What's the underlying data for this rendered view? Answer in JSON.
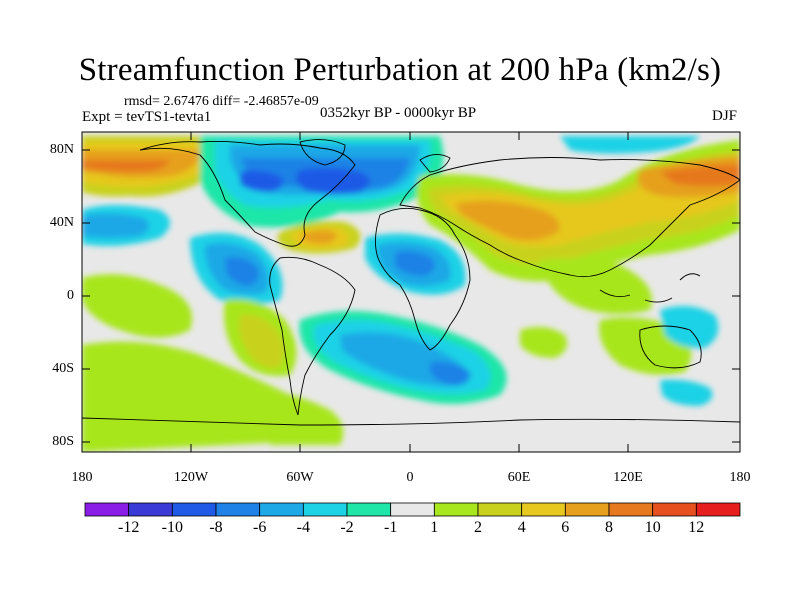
{
  "title": "Streamfunction Perturbation at 200 hPa (km2/s)",
  "stats": "rmsd= 2.67476  diff= -2.46857e-09",
  "experiment": "Expt = tevTS1-tevta1",
  "period": "0352kyr BP - 0000kyr BP",
  "season": "DJF",
  "y_ticks": [
    "80N",
    "40N",
    "0",
    "40S",
    "80S"
  ],
  "x_ticks": [
    "180",
    "120W",
    "60W",
    "0",
    "60E",
    "120E",
    "180"
  ],
  "colorbar": {
    "colors": [
      "#8a1ee6",
      "#3a3ad6",
      "#1e5ae6",
      "#1e82e6",
      "#1ea8e6",
      "#1ed2e6",
      "#1ee6a8",
      "#e8e8e8",
      "#a8e61e",
      "#c8d21e",
      "#e6c81e",
      "#e6a01e",
      "#e6781e",
      "#e6501e",
      "#e61e1e"
    ],
    "labels": [
      "-12",
      "-10",
      "-8",
      "-6",
      "-4",
      "-2",
      "-1",
      "1",
      "2",
      "4",
      "6",
      "8",
      "10",
      "12"
    ]
  },
  "colors": {
    "neutral": "#e8e8e8",
    "coast": "#000000"
  }
}
